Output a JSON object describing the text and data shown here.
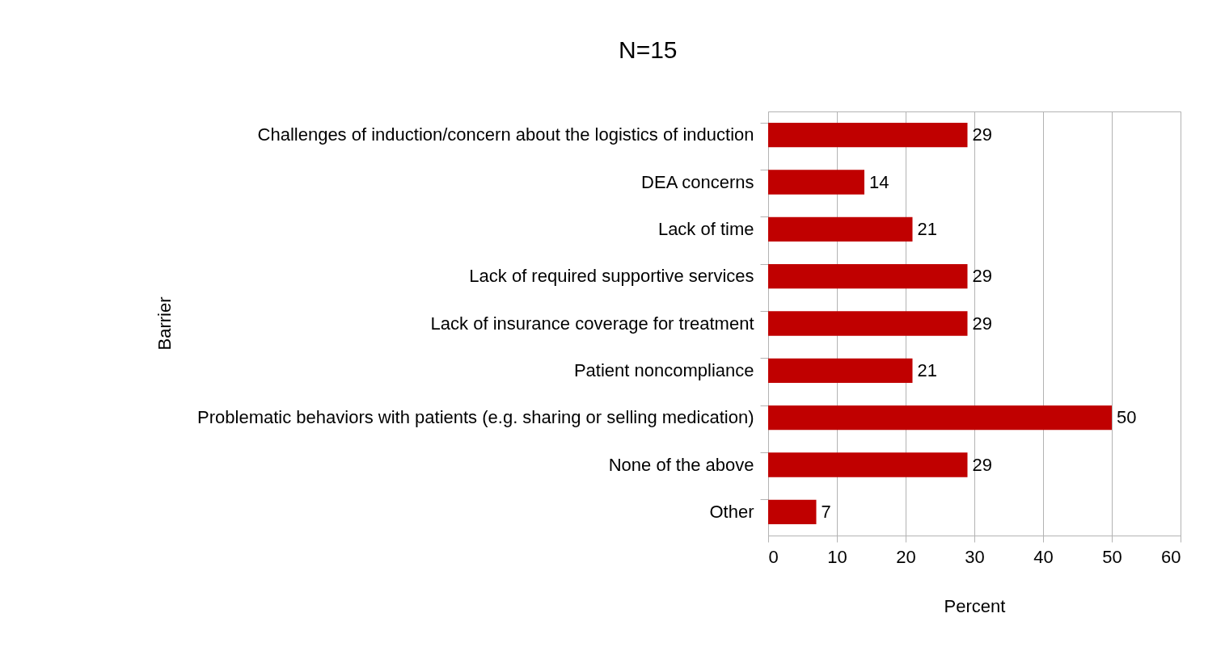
{
  "chart_data": {
    "type": "bar",
    "orientation": "horizontal",
    "title": "N=15",
    "xlabel": "Percent",
    "ylabel": "Barrier",
    "categories": [
      "Challenges of induction/concern about the logistics of induction",
      "DEA concerns",
      "Lack of time",
      "Lack of required supportive services",
      "Lack of insurance coverage for treatment",
      "Patient noncompliance",
      "Problematic behaviors with patients (e.g. sharing or selling medication)",
      "None of the above",
      "Other"
    ],
    "values": [
      29,
      14,
      21,
      29,
      29,
      21,
      50,
      29,
      7
    ],
    "color": "#c00000",
    "xlim": [
      0,
      60
    ],
    "xticks": [
      0,
      10,
      20,
      30,
      40,
      50,
      60
    ],
    "grid": "x",
    "data_labels": true
  }
}
